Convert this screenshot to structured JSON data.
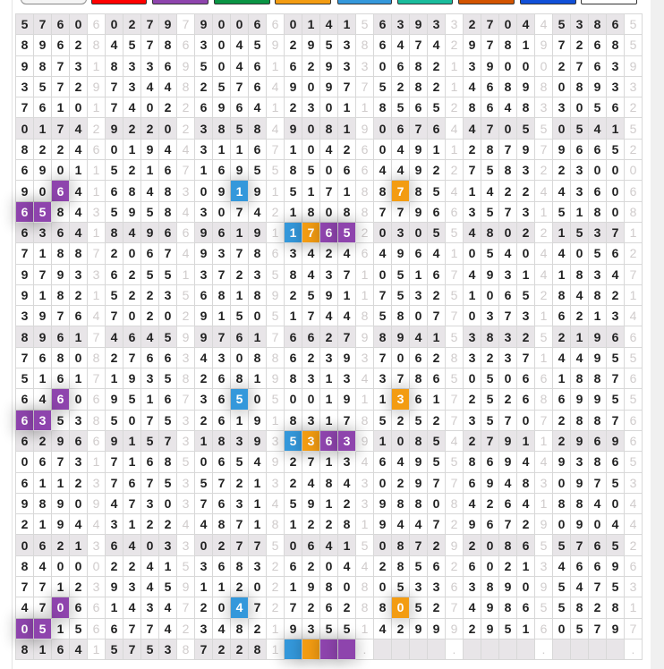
{
  "palette": [
    {
      "name": "white",
      "color": "#f4f4f4"
    },
    {
      "name": "red",
      "color": "#ff0000"
    },
    {
      "name": "purple",
      "color": "#8e44ad"
    },
    {
      "name": "green",
      "color": "#0a9444"
    },
    {
      "name": "orange",
      "color": "#f39c12"
    },
    {
      "name": "blue",
      "color": "#3498db"
    },
    {
      "name": "teal",
      "color": "#1abc9c"
    },
    {
      "name": "dark-orange",
      "color": "#d35400"
    },
    {
      "name": "royal-blue",
      "color": "#1150d8"
    },
    {
      "name": "white",
      "color": "#ffffff"
    }
  ],
  "highlight_colors": {
    "blue": "#3498db",
    "orange": "#f39c12",
    "purple": "#8e44ad"
  },
  "grid": {
    "rows": [
      "57606027979006601415639332704453865",
      "89628457863045929538647429781972685",
      "98731833695046162933068213900027639",
      "35729734482576490977528214689808933",
      "76101740226964123011856528648330562",
      "01742922023858490819067644705505415",
      "82246019443116710426049112879796652",
      "69011521671695585066449227583223000",
      "90641684830919151718878541422443606",
      "65843595843074218088779663573151808",
      "63641849669619117652030554802215371",
      "71887206749378634246496410540440562",
      "97933625513723584371051674931418347",
      "91821522356818925911753251065284821",
      "39764702029150517448580770373162134",
      "89617464599761766279894153832521966",
      "76808276634308862393706283237144955",
      "51617193582681983134378650506618876",
      "64606951673650500191136172526869955",
      "63538507532619183178525273570728876",
      "62966915731839353639108542791129696",
      "06731716850654927134649558694493865",
      "61123767535721324843029776948309753",
      "98909473037631459123988084264188404",
      "21944312244871812281944729672909044",
      "06213640330277506415087292086557652",
      "84000224153683262044285626021346696",
      "77123934591120219808053363890954753",
      "47066143472047272628805274986558281",
      "05156677423482193551429992951605797",
      "816415753872281    .    .    .    ."
    ],
    "highlights": [
      {
        "row": 8,
        "col": 2,
        "color": "purple"
      },
      {
        "row": 8,
        "col": 12,
        "color": "blue"
      },
      {
        "row": 8,
        "col": 21,
        "color": "orange"
      },
      {
        "row": 9,
        "col": 0,
        "color": "purple"
      },
      {
        "row": 9,
        "col": 1,
        "color": "purple"
      },
      {
        "row": 10,
        "col": 15,
        "color": "blue"
      },
      {
        "row": 10,
        "col": 16,
        "color": "orange"
      },
      {
        "row": 10,
        "col": 17,
        "color": "purple"
      },
      {
        "row": 10,
        "col": 18,
        "color": "purple"
      },
      {
        "row": 18,
        "col": 2,
        "color": "purple"
      },
      {
        "row": 18,
        "col": 12,
        "color": "blue"
      },
      {
        "row": 18,
        "col": 21,
        "color": "orange"
      },
      {
        "row": 19,
        "col": 0,
        "color": "purple"
      },
      {
        "row": 19,
        "col": 1,
        "color": "purple"
      },
      {
        "row": 20,
        "col": 15,
        "color": "blue"
      },
      {
        "row": 20,
        "col": 16,
        "color": "orange"
      },
      {
        "row": 20,
        "col": 17,
        "color": "purple"
      },
      {
        "row": 20,
        "col": 18,
        "color": "purple"
      },
      {
        "row": 28,
        "col": 2,
        "color": "purple"
      },
      {
        "row": 28,
        "col": 12,
        "color": "blue"
      },
      {
        "row": 28,
        "col": 21,
        "color": "orange"
      },
      {
        "row": 29,
        "col": 0,
        "color": "purple"
      },
      {
        "row": 29,
        "col": 1,
        "color": "purple"
      },
      {
        "row": 30,
        "col": 15,
        "color": "blue"
      },
      {
        "row": 30,
        "col": 16,
        "color": "orange"
      },
      {
        "row": 30,
        "col": 17,
        "color": "purple"
      },
      {
        "row": 30,
        "col": 18,
        "color": "purple"
      }
    ]
  }
}
